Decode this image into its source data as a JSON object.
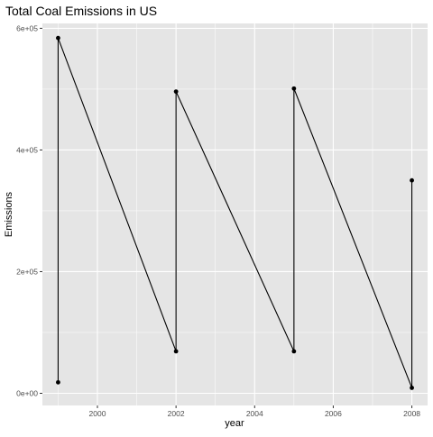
{
  "chart_data": {
    "type": "line",
    "title": "Total Coal Emissions in US",
    "xlabel": "year",
    "ylabel": "Emissions",
    "x_ticks": [
      2000,
      2002,
      2004,
      2006,
      2008
    ],
    "y_ticks": [
      0,
      200000,
      400000,
      600000
    ],
    "y_tick_labels": [
      "0e+00",
      "2e+05",
      "4e+05",
      "6e+05"
    ],
    "xlim": [
      1998.6,
      2008.4
    ],
    "ylim": [
      -20000,
      608000
    ],
    "grid": true,
    "series": [
      {
        "points": [
          {
            "x": 1999,
            "y": 18000
          },
          {
            "x": 1999,
            "y": 584000
          },
          {
            "x": 2002,
            "y": 69000
          },
          {
            "x": 2002,
            "y": 496000
          },
          {
            "x": 2005,
            "y": 69000
          },
          {
            "x": 2005,
            "y": 501000
          },
          {
            "x": 2008,
            "y": 9000
          },
          {
            "x": 2008,
            "y": 350000
          }
        ]
      }
    ]
  },
  "colors": {
    "panel_bg": "#e5e5e5",
    "grid": "#ffffff",
    "line": "#000000",
    "point": "#000000",
    "tick_text": "#4d4d4d"
  }
}
